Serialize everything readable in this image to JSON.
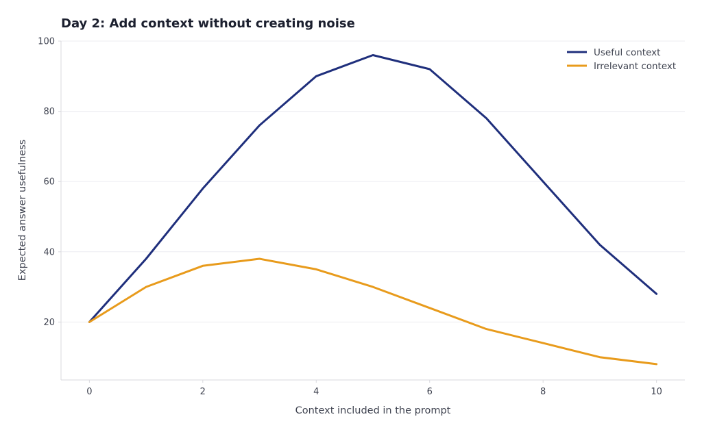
{
  "chart_data": {
    "type": "line",
    "title": "Day 2: Add context without creating noise",
    "xlabel": "Context included in the prompt",
    "ylabel": "Expected answer usefulness",
    "x": [
      0,
      1,
      2,
      3,
      4,
      5,
      6,
      7,
      8,
      9,
      10
    ],
    "xlim": [
      -0.5,
      10.5
    ],
    "ylim": [
      3.5,
      100
    ],
    "x_ticks": [
      0,
      2,
      4,
      6,
      8,
      10
    ],
    "y_ticks": [
      20,
      40,
      60,
      80,
      100
    ],
    "grid": "horizontal",
    "legend_position": "top-right",
    "series": [
      {
        "name": "Useful context",
        "color": "#1f2f7c",
        "values": [
          20,
          38,
          58,
          76,
          90,
          96,
          92,
          78,
          60,
          42,
          28
        ]
      },
      {
        "name": "Irrelevant context",
        "color": "#e89b1c",
        "values": [
          20,
          30,
          36,
          38,
          35,
          30,
          24,
          18,
          14,
          10,
          8
        ]
      }
    ]
  }
}
